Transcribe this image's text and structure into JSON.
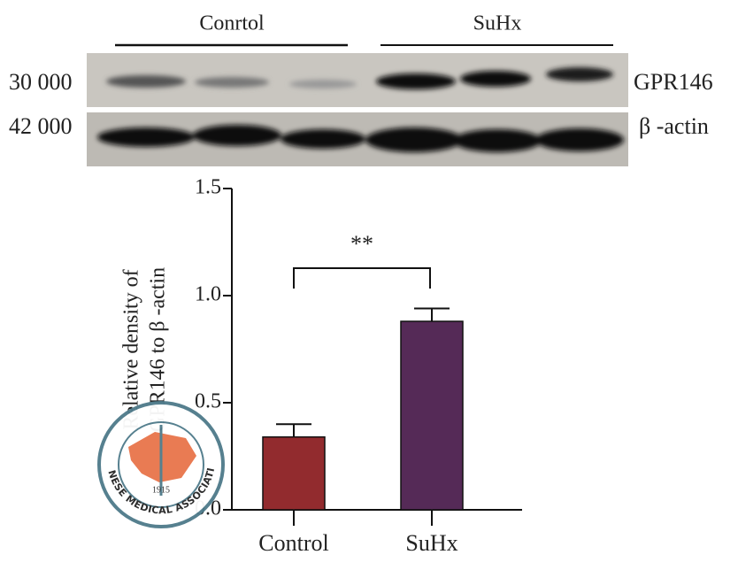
{
  "blot": {
    "groups": [
      "Conrtol",
      "SuHx"
    ],
    "sizes": [
      "30 000",
      "42 000"
    ],
    "bands": [
      "GPR146",
      "β -actin"
    ]
  },
  "chart_data": {
    "type": "bar",
    "ylabel": [
      "Relative density of",
      "GPR146 to β -actin"
    ],
    "categories": [
      "Control",
      "SuHx"
    ],
    "values": [
      0.34,
      0.88
    ],
    "errors": [
      0.06,
      0.06
    ],
    "colors": [
      "#922b2e",
      "#552a57"
    ],
    "ylim": [
      0,
      1.5
    ],
    "yticks": [
      {
        "value": 0,
        "label": "0.0"
      },
      {
        "value": 0.5,
        "label": "0.5"
      },
      {
        "value": 1,
        "label": "1.0"
      },
      {
        "value": 1.5,
        "label": "1.5"
      }
    ],
    "annotation": "**"
  },
  "watermark": {
    "text": "CHINESE MEDICAL ASSOCIATION",
    "year": "1915"
  }
}
